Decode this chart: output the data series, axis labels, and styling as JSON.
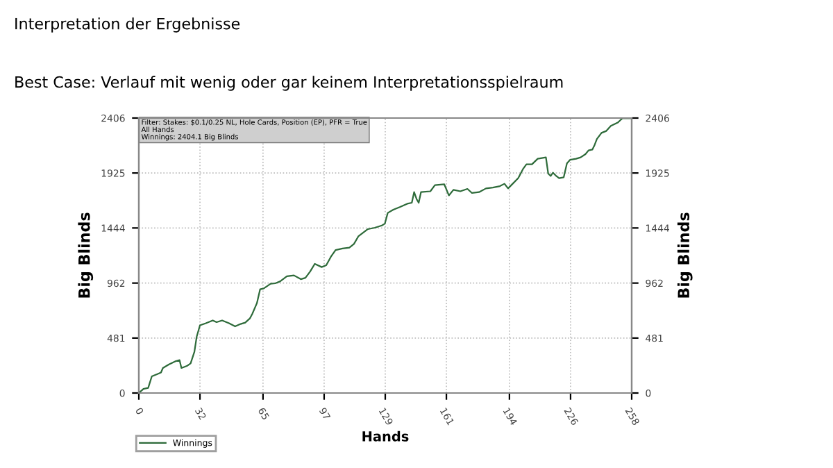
{
  "chart_data": {
    "type": "line",
    "title": "Interpretation der Ergebnisse",
    "subtitle": "Best Case: Verlauf mit wenig oder gar keinem Interpretationsspielraum",
    "xlabel": "Hands",
    "ylabel": "Big Blinds",
    "y2label": "Big Blinds",
    "annotations": [
      "Filter: Stakes: $0.1/0.25 NL, Hole Cards, Position (EP), PFR = True\nAll Hands\nWinnings: 2404.1 Big Blinds"
    ],
    "series": [
      {
        "name": "Winnings",
        "color": "#2e6b3a",
        "x": [
          0,
          2.4,
          4.9,
          6.8,
          9.7,
          11.6,
          12.6,
          15.8,
          19.4,
          21.3,
          22.3,
          25.4,
          27.1,
          29.1,
          30.3,
          32,
          35.1,
          38.7,
          40.7,
          43.6,
          47.2,
          50.4,
          53.3,
          55.7,
          58.1,
          59.4,
          61.8,
          63.5,
          65.4,
          69,
          71.4,
          73.9,
          77.5,
          81.2,
          84.8,
          87.2,
          89.6,
          92.1,
          95.7,
          98.1,
          100.5,
          103,
          106.6,
          110.2,
          112.6,
          115,
          119.9,
          123.5,
          127.2,
          128.8,
          130.3,
          133.2,
          136.8,
          140.5,
          142.9,
          144.1,
          145.4,
          146.5,
          147.7,
          152.6,
          155,
          159.9,
          162.3,
          164.7,
          168.3,
          172,
          174.4,
          178.1,
          181.7,
          185.3,
          189,
          191.4,
          193.3,
          195.7,
          198.6,
          201.1,
          202.9,
          205.8,
          208.8,
          213.1,
          214.3,
          215.6,
          216.8,
          218.5,
          220,
          222.4,
          224.1,
          225.8,
          228.9,
          231.3,
          233.8,
          235.4,
          237.4,
          238.6,
          239.8,
          242.2,
          244.7,
          247.1,
          250.7,
          251.9,
          253.1,
          255.5,
          258
        ],
        "values": [
          0,
          36,
          45,
          146,
          166,
          179,
          219,
          251,
          279,
          288,
          219,
          239,
          259,
          361,
          494,
          592,
          611,
          635,
          620,
          635,
          611,
          583,
          604,
          616,
          652,
          693,
          786,
          908,
          915,
          956,
          960,
          976,
          1021,
          1029,
          996,
          1008,
          1061,
          1130,
          1102,
          1118,
          1191,
          1251,
          1264,
          1272,
          1304,
          1373,
          1434,
          1446,
          1466,
          1482,
          1576,
          1604,
          1628,
          1656,
          1665,
          1758,
          1697,
          1665,
          1758,
          1765,
          1819,
          1826,
          1729,
          1778,
          1765,
          1786,
          1750,
          1758,
          1790,
          1798,
          1810,
          1831,
          1790,
          1831,
          1880,
          1960,
          2001,
          2001,
          2050,
          2062,
          1920,
          1899,
          1928,
          1899,
          1880,
          1887,
          2009,
          2041,
          2050,
          2062,
          2090,
          2123,
          2130,
          2171,
          2223,
          2276,
          2293,
          2337,
          2366,
          2385,
          2404,
          2404,
          2404
        ]
      }
    ],
    "xlim": [
      0,
      258
    ],
    "xticks": [
      0,
      32,
      65,
      97,
      129,
      161,
      194,
      226,
      258
    ],
    "ylim": [
      0,
      2406
    ],
    "yticks": [
      0,
      481,
      962,
      1444,
      1925,
      2406
    ],
    "y2lim": [
      0,
      2406
    ],
    "y2ticks": [
      0,
      481,
      962,
      1444,
      1925,
      2406
    ],
    "grid": true,
    "legend": "bottom left",
    "marker": "none",
    "line_style": "solid"
  }
}
